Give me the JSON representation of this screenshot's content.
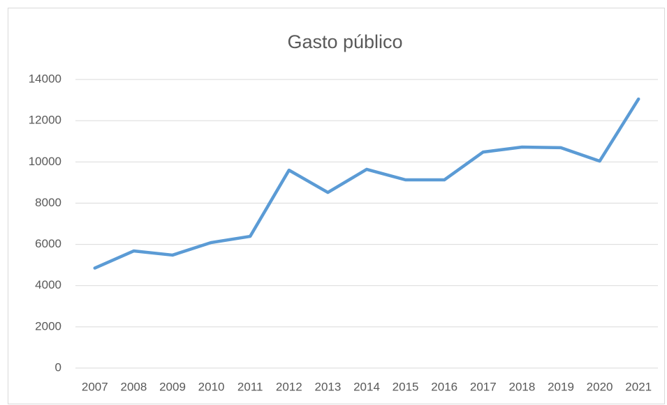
{
  "chart_data": {
    "type": "line",
    "title": "Gasto público",
    "categories": [
      "2007",
      "2008",
      "2009",
      "2010",
      "2011",
      "2012",
      "2013",
      "2014",
      "2015",
      "2016",
      "2017",
      "2018",
      "2019",
      "2020",
      "2021"
    ],
    "series": [
      {
        "name": "Gasto público",
        "color": "#5b9bd5",
        "values": [
          4850,
          5680,
          5480,
          6090,
          6390,
          9600,
          8520,
          9640,
          9130,
          9130,
          10480,
          10720,
          10690,
          10040,
          13050
        ]
      }
    ],
    "ylim": [
      0,
      14000
    ],
    "yticks": [
      0,
      2000,
      4000,
      6000,
      8000,
      10000,
      12000,
      14000
    ],
    "grid": true
  }
}
